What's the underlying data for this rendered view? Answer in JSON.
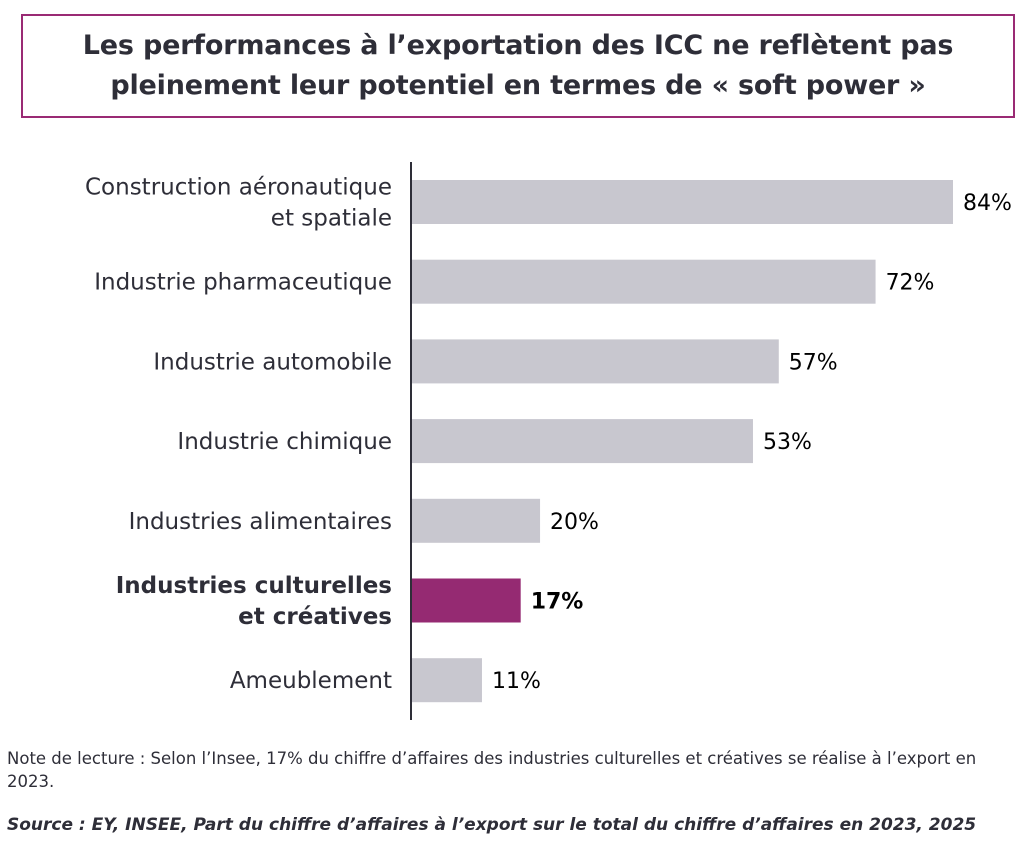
{
  "title": {
    "line1": "Les performances à l’exportation des ICC ne reflètent pas",
    "line2": "pleinement leur potentiel en termes de « soft power »"
  },
  "chart_data": {
    "type": "bar",
    "orientation": "horizontal",
    "categories": [
      [
        "Construction aéronautique",
        "et spatiale"
      ],
      [
        "Industrie pharmaceutique"
      ],
      [
        "Industrie automobile"
      ],
      [
        "Industrie chimique"
      ],
      [
        "Industries alimentaires"
      ],
      [
        "Industries culturelles",
        "et créatives"
      ],
      [
        "Ameublement"
      ]
    ],
    "values": [
      84,
      72,
      57,
      53,
      20,
      17,
      11
    ],
    "value_labels": [
      "84%",
      "72%",
      "57%",
      "53%",
      "20%",
      "17%",
      "11%"
    ],
    "highlight_index": 5,
    "unit": "%",
    "xlim": [
      0,
      100
    ],
    "colors": {
      "default": "#c8c7cf",
      "highlight": "#952a72",
      "axis": "#2e2e38"
    }
  },
  "note": "Note de lecture : Selon l’Insee, 17% du chiffre d’affaires des industries culturelles et créatives se réalise à l’export en 2023.",
  "source": "Source : EY, INSEE, Part du chiffre d’affaires à l’export sur le total du chiffre d’affaires en 2023, 2025"
}
